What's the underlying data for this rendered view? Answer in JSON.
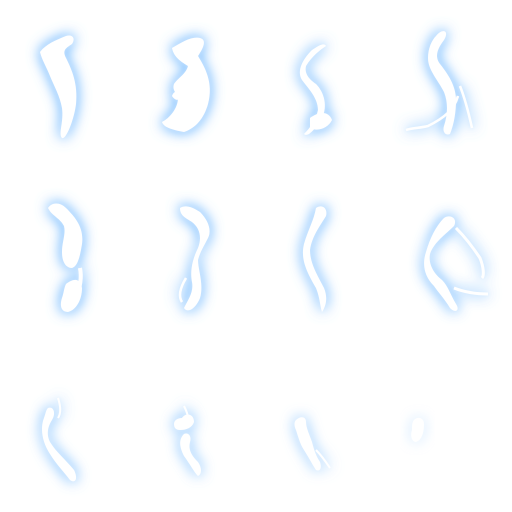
{
  "sprite_sheet": {
    "columns": 4,
    "rows": 3,
    "glow_color": "#3d8bff",
    "core_color": "#ffffff",
    "frames": [
      {
        "name": "frame-1",
        "opacity": 1.0
      },
      {
        "name": "frame-2",
        "opacity": 1.0
      },
      {
        "name": "frame-3",
        "opacity": 1.0
      },
      {
        "name": "frame-4",
        "opacity": 1.0
      },
      {
        "name": "frame-5",
        "opacity": 1.0
      },
      {
        "name": "frame-6",
        "opacity": 1.0
      },
      {
        "name": "frame-7",
        "opacity": 1.0
      },
      {
        "name": "frame-8",
        "opacity": 0.95
      },
      {
        "name": "frame-9",
        "opacity": 0.85
      },
      {
        "name": "frame-10",
        "opacity": 0.75
      },
      {
        "name": "frame-11",
        "opacity": 0.6
      },
      {
        "name": "frame-12",
        "opacity": 0.25
      }
    ]
  }
}
